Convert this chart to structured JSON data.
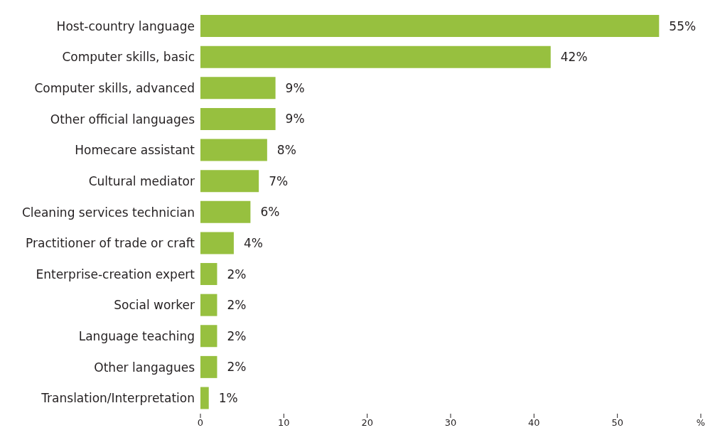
{
  "chart_data": {
    "type": "bar",
    "orientation": "horizontal",
    "categories": [
      "Host-country language",
      "Computer skills, basic",
      "Computer skills, advanced",
      "Other official languages",
      "Homecare assistant",
      "Cultural mediator",
      "Cleaning services technician",
      "Practitioner of trade or craft",
      "Enterprise-creation expert",
      "Social worker",
      "Language teaching",
      "Other langagues",
      "Translation/Interpretation"
    ],
    "values": [
      55,
      42,
      9,
      9,
      8,
      7,
      6,
      4,
      2,
      2,
      2,
      2,
      1
    ],
    "value_labels": [
      "55%",
      "42%",
      "9%",
      "9%",
      "8%",
      "7%",
      "6%",
      "4%",
      "2%",
      "2%",
      "2%",
      "2%",
      "1%"
    ],
    "color": "#97c03f",
    "xlim": [
      0,
      60
    ],
    "xticks": [
      0,
      10,
      20,
      30,
      40,
      50,
      {
        "value": 60,
        "label": "%"
      }
    ],
    "grid": false,
    "legend": false
  }
}
